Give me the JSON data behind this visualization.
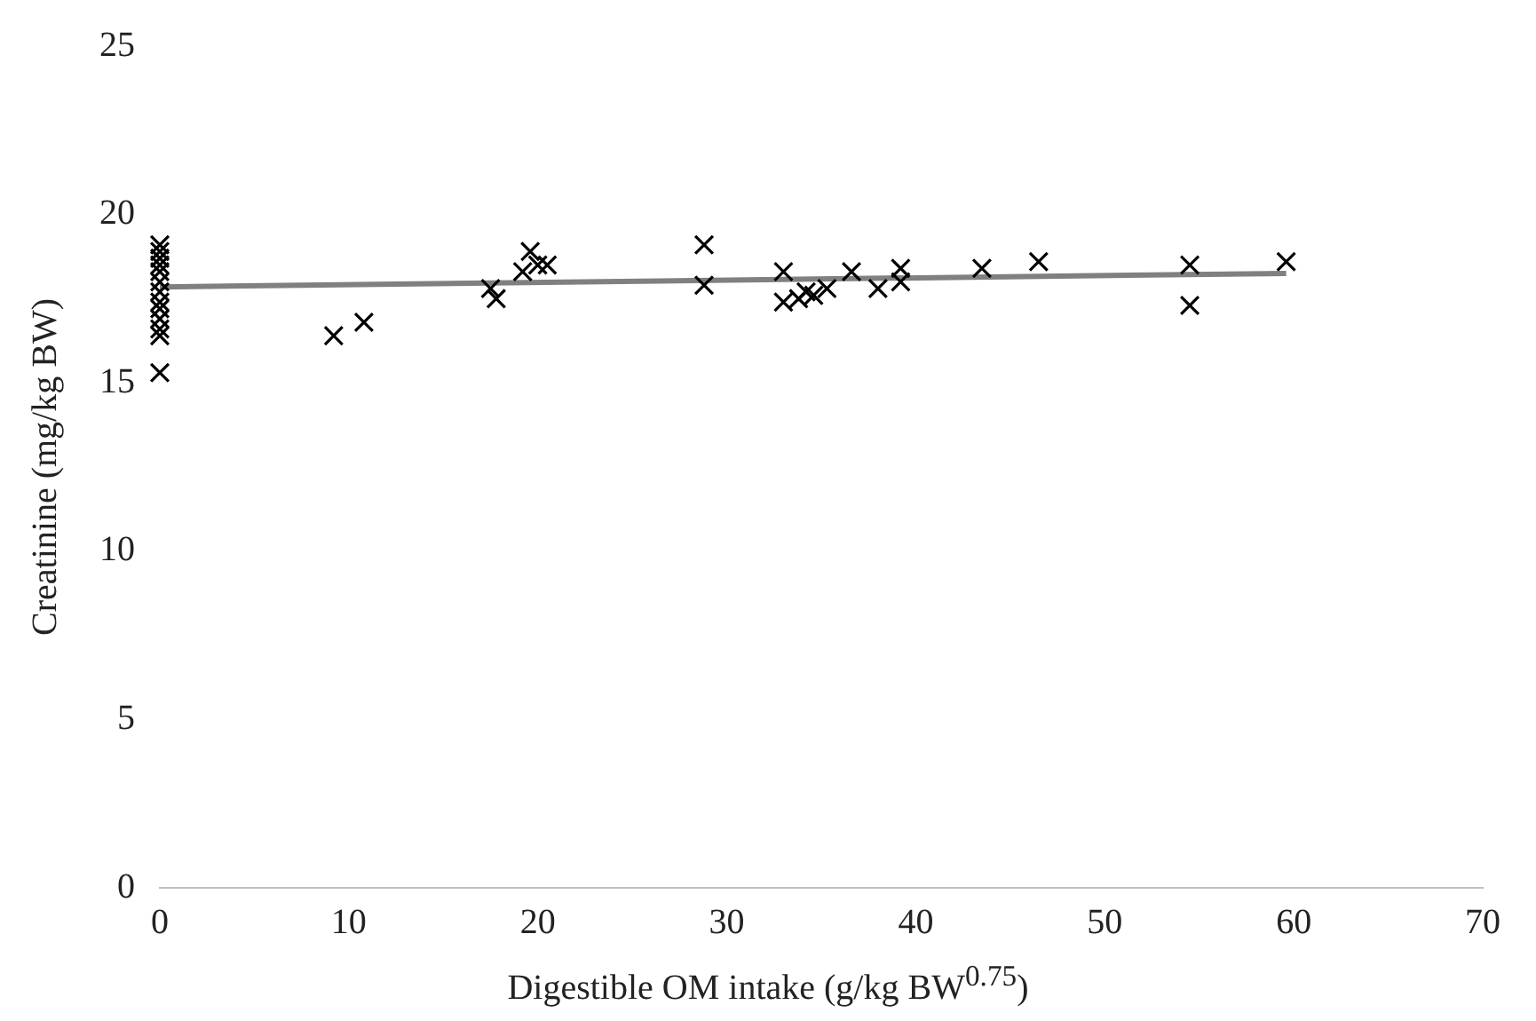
{
  "chart_data": {
    "type": "scatter",
    "xlabel": "Digestible OM intake (g/kg BW$^{0.75}$)",
    "ylabel": "Creatinine (mg/kg BW)",
    "xlim": [
      0,
      70
    ],
    "xticks": [
      0,
      10,
      20,
      30,
      40,
      50,
      60,
      70
    ],
    "ylim": [
      0,
      25
    ],
    "yticks": [
      0,
      5,
      10,
      15,
      20,
      25
    ],
    "grid": false,
    "legend": false,
    "marker": "cross",
    "series": [
      {
        "color": "#000000",
        "x": [
          0,
          0,
          0,
          0,
          0,
          0,
          0,
          0,
          0,
          0,
          0,
          0,
          0,
          9.2,
          10.8,
          17.5,
          17.8,
          19.2,
          19.6,
          20,
          20.5,
          28.8,
          28.8,
          33,
          33,
          33.8,
          34.2,
          34.6,
          35.3,
          36.6,
          38,
          39.2,
          39.2,
          43.5,
          46.5,
          54.5,
          54.5,
          59.6
        ],
        "values": [
          19.1,
          18.9,
          18.7,
          18.5,
          18.3,
          18,
          17.7,
          17.4,
          17.2,
          16.9,
          16.6,
          16.4,
          15.3,
          16.4,
          16.8,
          17.8,
          17.5,
          18.3,
          18.9,
          18.5,
          18.5,
          19.1,
          17.9,
          18.3,
          17.4,
          17.5,
          17.7,
          17.6,
          17.8,
          18.3,
          17.8,
          18.4,
          18,
          18.4,
          18.6,
          18.5,
          17.3,
          18.6
        ]
      },
      {
        "type": "line",
        "color": "#808080",
        "marker": "none",
        "x": [
          0,
          59.6
        ],
        "values": [
          17.85,
          18.25
        ]
      }
    ]
  }
}
